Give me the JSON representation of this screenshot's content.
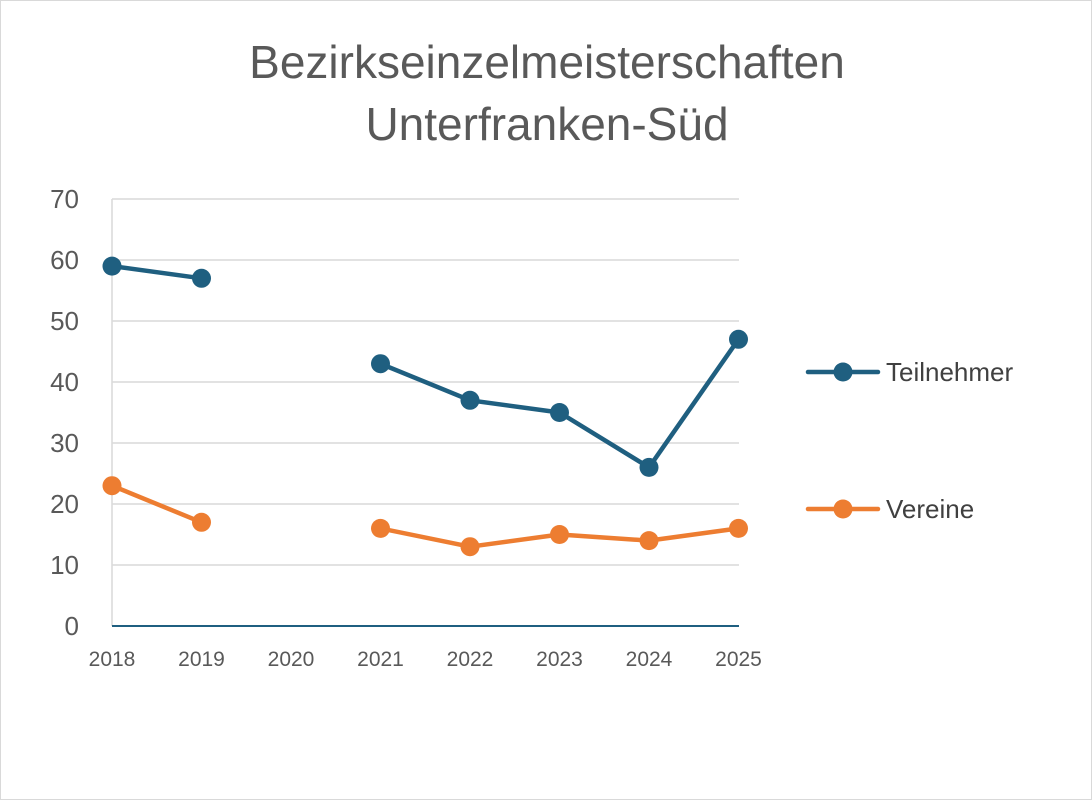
{
  "chart_data": {
    "type": "line",
    "title_lines": [
      "Bezirkseinzelmeisterschaften",
      "Unterfranken-Süd"
    ],
    "x": [
      "2018",
      "2019",
      "2020",
      "2021",
      "2022",
      "2023",
      "2024",
      "2025"
    ],
    "series": [
      {
        "name": "Teilnehmer",
        "color": "#1f5f80",
        "values": [
          59,
          57,
          null,
          43,
          37,
          35,
          26,
          47
        ]
      },
      {
        "name": "Vereine",
        "color": "#ed7d31",
        "values": [
          23,
          17,
          null,
          16,
          13,
          15,
          14,
          16
        ]
      }
    ],
    "ylim": [
      0,
      70
    ],
    "yticks": [
      0,
      10,
      20,
      30,
      40,
      50,
      60,
      70
    ],
    "grid": true,
    "legend_position": "right",
    "xlabel": "",
    "ylabel": ""
  }
}
